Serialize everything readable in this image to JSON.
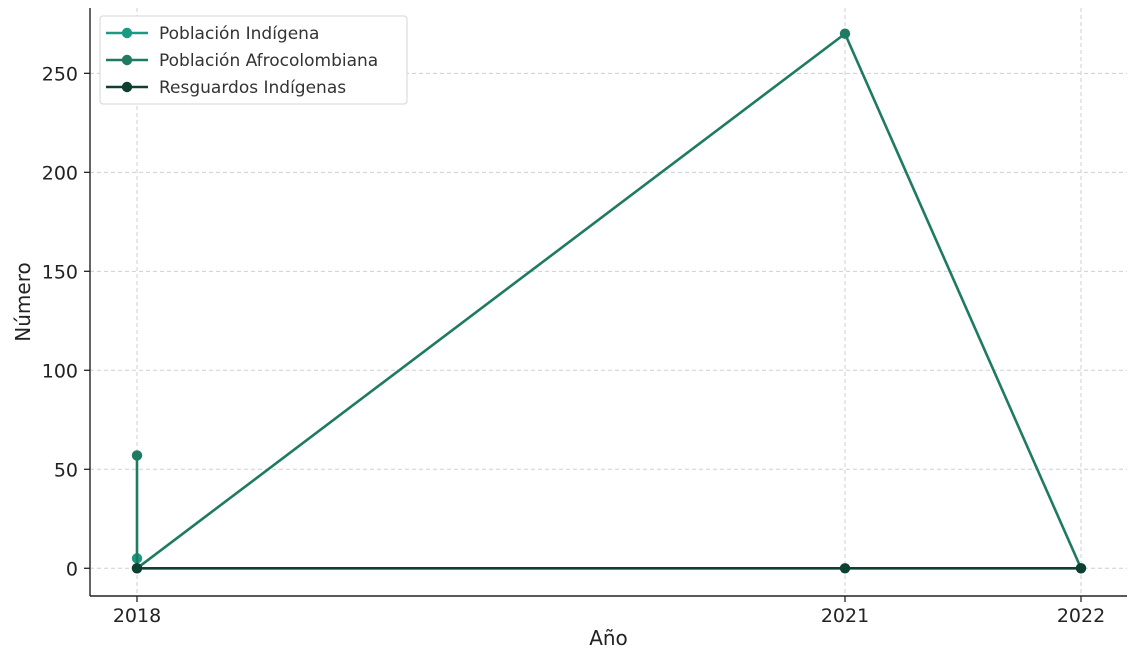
{
  "chart_data": {
    "type": "line",
    "title": "",
    "xlabel": "Año",
    "ylabel": "Número",
    "ylim": [
      -14,
      283
    ],
    "yticks": [
      0,
      50,
      100,
      150,
      200,
      250
    ],
    "xticks": [
      "2018",
      "2021",
      "2022"
    ],
    "grid": true,
    "legend_position": "top-left",
    "series": [
      {
        "name": "Población Indígena",
        "color": "#1a9a80",
        "points": [
          {
            "x": 2018,
            "y": 5
          },
          {
            "x": 2018,
            "y": 0
          }
        ]
      },
      {
        "name": "Población Afrocolombiana",
        "color": "#1f7a62",
        "points": [
          {
            "x": 2018,
            "y": 57
          },
          {
            "x": 2018,
            "y": 0
          },
          {
            "x": 2021,
            "y": 270
          },
          {
            "x": 2022,
            "y": 0
          }
        ]
      },
      {
        "name": "Resguardos Indígenas",
        "color": "#0e4031",
        "points": [
          {
            "x": 2018,
            "y": 0
          },
          {
            "x": 2021,
            "y": 0
          },
          {
            "x": 2022,
            "y": 0
          }
        ]
      }
    ]
  }
}
